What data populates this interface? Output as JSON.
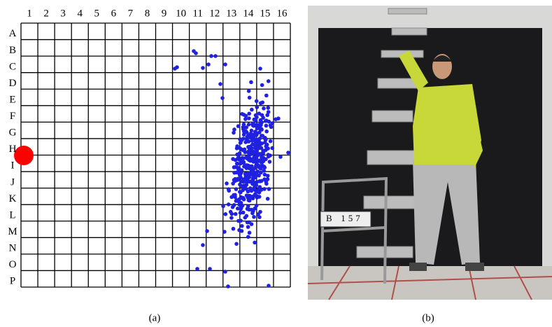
{
  "panel_a": {
    "columns": [
      "1",
      "2",
      "3",
      "4",
      "5",
      "6",
      "7",
      "8",
      "9",
      "10",
      "11",
      "12",
      "13",
      "14",
      "15",
      "16"
    ],
    "rows": [
      "A",
      "B",
      "C",
      "D",
      "E",
      "F",
      "G",
      "H",
      "I",
      "J",
      "K",
      "L",
      "M",
      "N",
      "O",
      "P"
    ],
    "caption": "(a)"
  },
  "panel_b": {
    "sign_letter": "B",
    "sign_number": "157",
    "caption": "(b)"
  }
}
